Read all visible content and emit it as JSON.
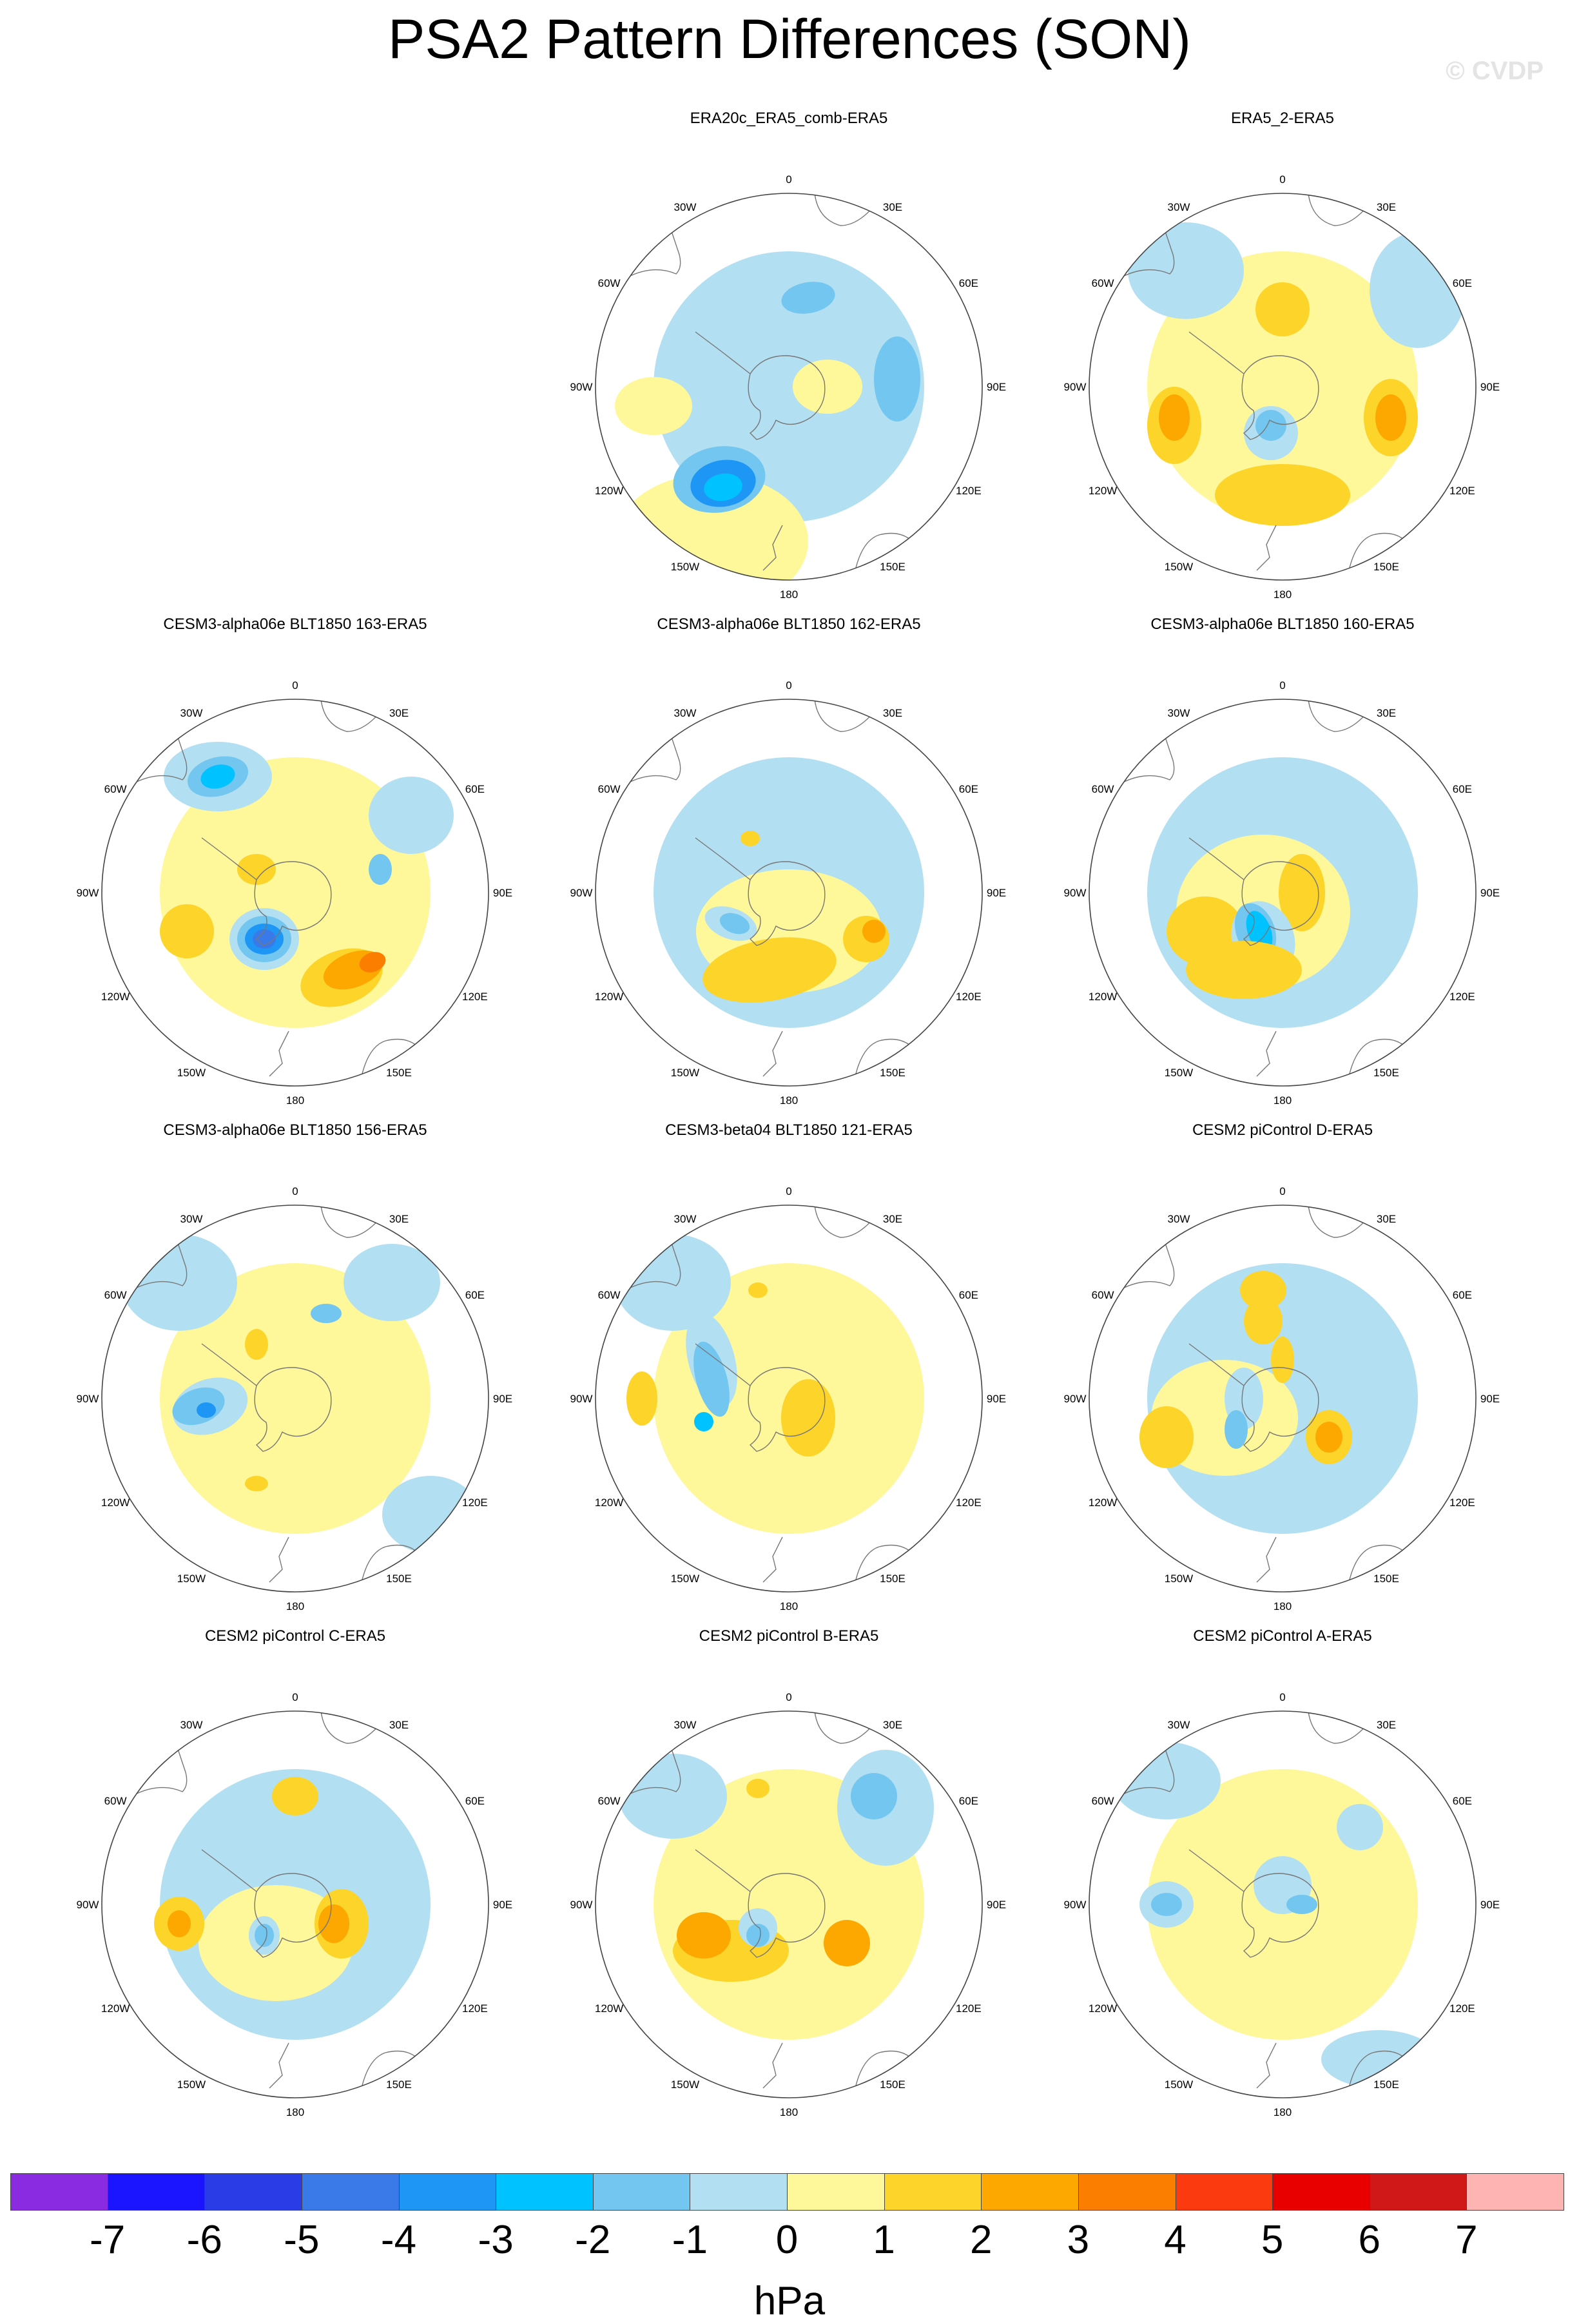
{
  "figure": {
    "title": "PSA2 Pattern Differences (SON)",
    "watermark": "© CVDP",
    "units": "hPa"
  },
  "lon_labels": [
    "0",
    "30E",
    "60E",
    "90E",
    "120E",
    "150E",
    "180",
    "150W",
    "120W",
    "90W",
    "60W",
    "30W"
  ],
  "panels": [
    {
      "title": "ERA20c_ERA5_comb-ERA5"
    },
    {
      "title": "ERA5_2-ERA5"
    },
    {
      "title": "CESM3-alpha06e BLT1850 163-ERA5"
    },
    {
      "title": "CESM3-alpha06e BLT1850 162-ERA5"
    },
    {
      "title": "CESM3-alpha06e BLT1850 160-ERA5"
    },
    {
      "title": "CESM3-alpha06e BLT1850 156-ERA5"
    },
    {
      "title": "CESM3-beta04 BLT1850 121-ERA5"
    },
    {
      "title": "CESM2 piControl D-ERA5"
    },
    {
      "title": "CESM2 piControl C-ERA5"
    },
    {
      "title": "CESM2 piControl B-ERA5"
    },
    {
      "title": "CESM2 piControl A-ERA5"
    }
  ],
  "colorbar": {
    "colors": [
      "#8a2be2",
      "#1a14ff",
      "#2a3ce6",
      "#3a7ae8",
      "#1e96f5",
      "#00c2ff",
      "#72c6f0",
      "#b3dff2",
      "#fff89a",
      "#fcd42a",
      "#fca800",
      "#fc7e00",
      "#fc3a10",
      "#e80000",
      "#d01818",
      "#ffb4b4"
    ],
    "labels": [
      "-7",
      "-6",
      "-5",
      "-4",
      "-3",
      "-2",
      "-1",
      "0",
      "1",
      "2",
      "3",
      "4",
      "5",
      "6",
      "7"
    ]
  }
}
